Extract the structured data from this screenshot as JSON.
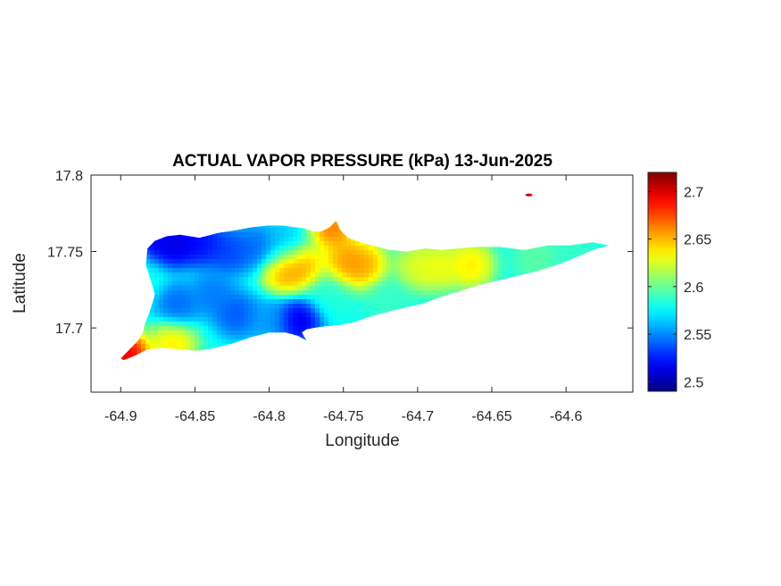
{
  "chart_data": {
    "type": "heatmap",
    "title": "ACTUAL VAPOR PRESSURE (kPa) 13-Jun-2025",
    "xlabel": "Longitude",
    "ylabel": "Latitude",
    "xlim": [
      -64.92,
      -64.555
    ],
    "ylim": [
      17.658,
      17.8
    ],
    "x_ticks": [
      -64.9,
      -64.85,
      -64.8,
      -64.75,
      -64.7,
      -64.65,
      -64.6
    ],
    "x_tick_labels": [
      "-64.9",
      "-64.85",
      "-64.8",
      "-64.75",
      "-64.7",
      "-64.65",
      "-64.6"
    ],
    "y_ticks": [
      17.7,
      17.75,
      17.8
    ],
    "y_tick_labels": [
      "17.7",
      "17.75",
      "17.8"
    ],
    "colormap": "jet",
    "clim": [
      2.49,
      2.72
    ],
    "colorbar_ticks": [
      2.5,
      2.55,
      2.6,
      2.65,
      2.7
    ],
    "colorbar_tick_labels": [
      "2.5",
      "2.55",
      "2.6",
      "2.65",
      "2.7"
    ],
    "island_outline": [
      [
        -64.9,
        17.68
      ],
      [
        -64.895,
        17.685
      ],
      [
        -64.888,
        17.692
      ],
      [
        -64.885,
        17.697
      ],
      [
        -64.884,
        17.702
      ],
      [
        -64.88,
        17.712
      ],
      [
        -64.877,
        17.722
      ],
      [
        -64.88,
        17.732
      ],
      [
        -64.883,
        17.741
      ],
      [
        -64.882,
        17.752
      ],
      [
        -64.877,
        17.757
      ],
      [
        -64.869,
        17.76
      ],
      [
        -64.86,
        17.761
      ],
      [
        -64.847,
        17.759
      ],
      [
        -64.835,
        17.762
      ],
      [
        -64.822,
        17.764
      ],
      [
        -64.811,
        17.766
      ],
      [
        -64.801,
        17.767
      ],
      [
        -64.791,
        17.767
      ],
      [
        -64.783,
        17.766
      ],
      [
        -64.776,
        17.765
      ],
      [
        -64.77,
        17.763
      ],
      [
        -64.765,
        17.763
      ],
      [
        -64.759,
        17.766
      ],
      [
        -64.755,
        17.77
      ],
      [
        -64.752,
        17.764
      ],
      [
        -64.747,
        17.759
      ],
      [
        -64.741,
        17.757
      ],
      [
        -64.735,
        17.755
      ],
      [
        -64.727,
        17.753
      ],
      [
        -64.719,
        17.751
      ],
      [
        -64.707,
        17.75
      ],
      [
        -64.695,
        17.752
      ],
      [
        -64.684,
        17.751
      ],
      [
        -64.672,
        17.752
      ],
      [
        -64.66,
        17.753
      ],
      [
        -64.645,
        17.753
      ],
      [
        -64.628,
        17.751
      ],
      [
        -64.612,
        17.754
      ],
      [
        -64.598,
        17.754
      ],
      [
        -64.582,
        17.756
      ],
      [
        -64.571,
        17.754
      ],
      [
        -64.582,
        17.751
      ],
      [
        -64.596,
        17.745
      ],
      [
        -64.607,
        17.741
      ],
      [
        -64.62,
        17.737
      ],
      [
        -64.633,
        17.734
      ],
      [
        -64.646,
        17.731
      ],
      [
        -64.659,
        17.728
      ],
      [
        -64.672,
        17.724
      ],
      [
        -64.685,
        17.72
      ],
      [
        -64.696,
        17.716
      ],
      [
        -64.706,
        17.714
      ],
      [
        -64.718,
        17.711
      ],
      [
        -64.73,
        17.708
      ],
      [
        -64.742,
        17.704
      ],
      [
        -64.752,
        17.702
      ],
      [
        -64.763,
        17.701
      ],
      [
        -64.77,
        17.7
      ],
      [
        -64.775,
        17.699
      ],
      [
        -64.778,
        17.697
      ],
      [
        -64.775,
        17.692
      ],
      [
        -64.781,
        17.695
      ],
      [
        -64.789,
        17.697
      ],
      [
        -64.8,
        17.697
      ],
      [
        -64.812,
        17.694
      ],
      [
        -64.824,
        17.69
      ],
      [
        -64.836,
        17.687
      ],
      [
        -64.848,
        17.685
      ],
      [
        -64.86,
        17.686
      ],
      [
        -64.872,
        17.687
      ],
      [
        -64.882,
        17.686
      ],
      [
        -64.89,
        17.682
      ],
      [
        -64.898,
        17.679
      ]
    ],
    "small_islet": [
      -64.625,
      17.787
    ],
    "anomalies": [
      {
        "lon": -64.875,
        "lat": 17.755,
        "value": 2.505
      },
      {
        "lon": -64.862,
        "lat": 17.755,
        "value": 2.5
      },
      {
        "lon": -64.845,
        "lat": 17.755,
        "value": 2.51
      },
      {
        "lon": -64.827,
        "lat": 17.75,
        "value": 2.525
      },
      {
        "lon": -64.808,
        "lat": 17.752,
        "value": 2.535
      },
      {
        "lon": -64.79,
        "lat": 17.755,
        "value": 2.56
      },
      {
        "lon": -64.862,
        "lat": 17.715,
        "value": 2.535
      },
      {
        "lon": -64.838,
        "lat": 17.722,
        "value": 2.54
      },
      {
        "lon": -64.822,
        "lat": 17.709,
        "value": 2.53
      },
      {
        "lon": -64.78,
        "lat": 17.705,
        "value": 2.5
      },
      {
        "lon": -64.8,
        "lat": 17.705,
        "value": 2.55
      },
      {
        "lon": -64.865,
        "lat": 17.69,
        "value": 2.65
      },
      {
        "lon": -64.896,
        "lat": 17.682,
        "value": 2.72
      },
      {
        "lon": -64.79,
        "lat": 17.737,
        "value": 2.665
      },
      {
        "lon": -64.778,
        "lat": 17.74,
        "value": 2.665
      },
      {
        "lon": -64.748,
        "lat": 17.743,
        "value": 2.67
      },
      {
        "lon": -64.736,
        "lat": 17.741,
        "value": 2.665
      },
      {
        "lon": -64.7,
        "lat": 17.74,
        "value": 2.635
      },
      {
        "lon": -64.685,
        "lat": 17.74,
        "value": 2.64
      },
      {
        "lon": -64.664,
        "lat": 17.741,
        "value": 2.65
      },
      {
        "lon": -64.757,
        "lat": 17.766,
        "value": 2.68
      },
      {
        "lon": -64.62,
        "lat": 17.745,
        "value": 2.6
      },
      {
        "lon": -64.595,
        "lat": 17.752,
        "value": 2.59
      },
      {
        "lon": -64.76,
        "lat": 17.722,
        "value": 2.585
      },
      {
        "lon": -64.885,
        "lat": 17.735,
        "value": 2.58
      },
      {
        "lon": -64.72,
        "lat": 17.718,
        "value": 2.59
      }
    ],
    "baseline_value": 2.58
  }
}
